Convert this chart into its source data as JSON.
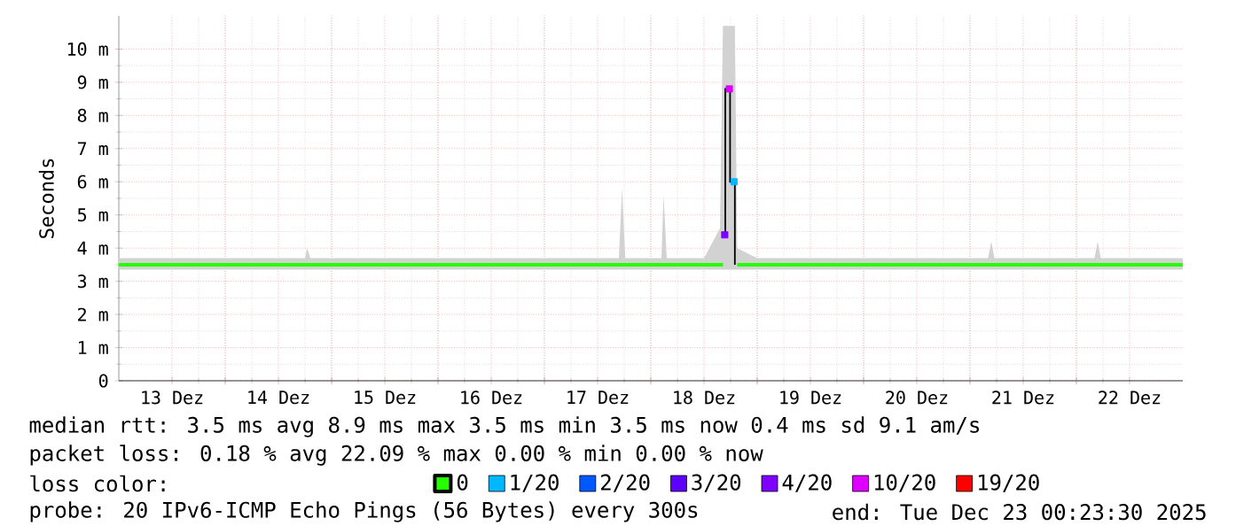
{
  "chart_data": {
    "type": "line",
    "ylabel": "Seconds",
    "x": [
      13.0,
      13.5,
      14.0,
      14.5,
      14.75,
      14.77,
      14.8,
      15.0,
      15.5,
      16.0,
      16.5,
      17.0,
      17.5,
      17.7,
      17.73,
      17.76,
      18.0,
      18.1,
      18.12,
      18.15,
      18.5,
      18.65,
      18.678,
      18.7,
      18.75,
      18.79,
      18.812,
      19.0,
      19.5,
      20.0,
      20.5,
      21.0,
      21.17,
      21.2,
      21.23,
      21.5,
      22.0,
      22.17,
      22.2,
      22.23,
      22.5,
      23.0
    ],
    "series": [
      {
        "name": "0",
        "color": "#26ff00",
        "values": [
          3.5,
          3.5,
          3.5,
          3.5,
          3.5,
          3.5,
          3.5,
          3.5,
          3.5,
          3.5,
          3.5,
          3.5,
          3.5,
          3.5,
          3.5,
          3.5,
          3.5,
          3.5,
          3.5,
          3.5,
          3.5,
          3.5,
          3.5,
          null,
          null,
          null,
          3.5,
          3.5,
          3.5,
          3.5,
          3.5,
          3.5,
          3.5,
          3.5,
          3.5,
          3.5,
          3.5,
          3.5,
          3.5,
          3.5,
          3.5,
          3.5
        ],
        "lower": [
          3.35,
          3.35,
          3.35,
          3.35,
          3.35,
          3.35,
          3.35,
          3.35,
          3.35,
          3.35,
          3.35,
          3.35,
          3.35,
          3.35,
          3.35,
          3.35,
          3.35,
          3.35,
          3.35,
          3.35,
          3.35,
          3.35,
          3.35,
          3.35,
          3.35,
          3.35,
          3.35,
          3.35,
          3.35,
          3.35,
          3.35,
          3.35,
          3.35,
          3.35,
          3.35,
          3.35,
          3.35,
          3.35,
          3.35,
          3.35,
          3.35,
          3.35
        ],
        "upper": [
          3.7,
          3.7,
          3.7,
          3.7,
          3.7,
          4.0,
          3.7,
          3.7,
          3.7,
          3.7,
          3.7,
          3.7,
          3.7,
          3.7,
          5.8,
          3.7,
          3.7,
          3.7,
          5.6,
          3.7,
          3.7,
          4.6,
          10.7,
          10.7,
          10.7,
          10.7,
          4.0,
          3.7,
          3.7,
          3.7,
          3.7,
          3.7,
          3.7,
          4.2,
          3.7,
          3.7,
          3.7,
          3.7,
          4.2,
          3.7,
          3.7,
          3.7
        ]
      },
      {
        "type": "step",
        "color": "#000000",
        "x": [
          18.678,
          18.7,
          18.745,
          18.79
        ],
        "values": [
          4.4,
          8.8,
          6.0,
          3.5
        ]
      },
      {
        "type": "scatter",
        "name": "1/20",
        "color": "#00b8ff",
        "marker": "square",
        "x": [
          18.783
        ],
        "values": [
          6.0
        ]
      },
      {
        "type": "scatter",
        "name": "2/20",
        "color": "#0059ff",
        "marker": "square",
        "values": [
          null,
          null,
          null,
          null,
          null,
          null,
          null,
          null,
          null,
          null,
          null,
          null,
          null,
          null,
          null,
          null,
          null,
          null,
          null,
          null,
          null,
          null,
          null,
          null,
          null,
          null,
          null,
          null,
          null,
          null,
          null,
          null,
          null,
          null,
          null,
          null,
          null,
          null,
          null,
          null,
          null,
          null
        ]
      },
      {
        "type": "scatter",
        "name": "3/20",
        "color": "#5e00ff",
        "marker": "square",
        "values": [
          null,
          null,
          null,
          null,
          null,
          null,
          null,
          null,
          null,
          null,
          null,
          null,
          null,
          null,
          null,
          null,
          null,
          null,
          null,
          null,
          null,
          null,
          null,
          null,
          null,
          null,
          null,
          null,
          null,
          null,
          null,
          null,
          null,
          null,
          null,
          null,
          null,
          null,
          null,
          null,
          null,
          null
        ]
      },
      {
        "type": "scatter",
        "name": "4/20",
        "color": "#7e00ff",
        "marker": "square",
        "x": [
          18.695
        ],
        "values": [
          4.4
        ]
      },
      {
        "type": "scatter",
        "name": "10/20",
        "color": "#dd00ff",
        "marker": "square",
        "x": [
          18.738
        ],
        "values": [
          8.8
        ]
      },
      {
        "type": "scatter",
        "name": "19/20",
        "color": "#ff0000",
        "marker": "square",
        "values": [
          null,
          null,
          null,
          null,
          null,
          null,
          null,
          null,
          null,
          null,
          null,
          null,
          null,
          null,
          null,
          null,
          null,
          null,
          null,
          null,
          null,
          null,
          null,
          null,
          null,
          null,
          null,
          null,
          null,
          null,
          null,
          null,
          null,
          null,
          null,
          null,
          null,
          null,
          null,
          null,
          null,
          null
        ]
      }
    ],
    "xlim": [
      13,
      23
    ],
    "xticks": [
      {
        "value": 13.5,
        "label": "13 Dez"
      },
      {
        "value": 14,
        "label": null
      },
      {
        "value": 14.5,
        "label": "14 Dez"
      },
      {
        "value": 15,
        "label": null
      },
      {
        "value": 15.5,
        "label": "15 Dez"
      },
      {
        "value": 16,
        "label": null
      },
      {
        "value": 16.5,
        "label": "16 Dez"
      },
      {
        "value": 17,
        "label": null
      },
      {
        "value": 17.5,
        "label": "17 Dez"
      },
      {
        "value": 18,
        "label": null
      },
      {
        "value": 18.5,
        "label": "18 Dez"
      },
      {
        "value": 19,
        "label": null
      },
      {
        "value": 19.5,
        "label": "19 Dez"
      },
      {
        "value": 20,
        "label": null
      },
      {
        "value": 20.5,
        "label": "20 Dez"
      },
      {
        "value": 21,
        "label": null
      },
      {
        "value": 21.5,
        "label": "21 Dez"
      },
      {
        "value": 22,
        "label": null
      },
      {
        "value": 22.5,
        "label": "22 Dez"
      }
    ],
    "ylim": [
      0,
      11
    ],
    "yticks": [
      0,
      {
        "value": 1,
        "label": "1 m"
      },
      {
        "value": 2,
        "label": "2 m"
      },
      {
        "value": 3,
        "label": "3 m"
      },
      {
        "value": 4,
        "label": "4 m"
      },
      {
        "value": 5,
        "label": "5 m"
      },
      {
        "value": 6,
        "label": "6 m"
      },
      {
        "value": 7,
        "label": "7 m"
      },
      {
        "value": 8,
        "label": "8 m"
      },
      {
        "value": 9,
        "label": "9 m"
      },
      {
        "value": 10,
        "label": "10 m"
      }
    ],
    "grid": true,
    "legend": "bottom",
    "annotations": [
      "median rtt:  3.5 ms avg  8.9 ms max  3.5 ms min  3.5 ms now  0.4 ms sd  9.1   am/s",
      "packet loss: 0.18 % avg  22.09 % max  0.00 % min  0.00 % now",
      "loss color:",
      "probe:       20 IPv6-ICMP Echo Pings (56 Bytes) every 300s",
      "end: Tue Dec 23 00:23:30 2025"
    ]
  }
}
